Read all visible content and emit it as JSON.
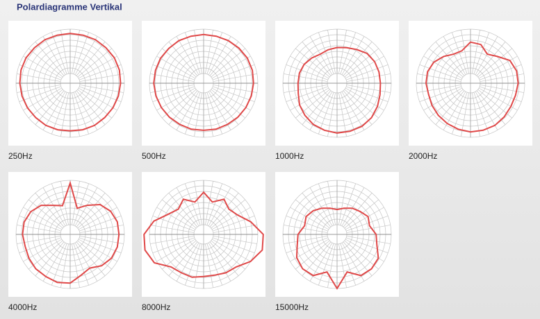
{
  "title": "Polardiagramme Vertikal",
  "chart_data": [
    {
      "type": "polar",
      "title": "250Hz",
      "color": "#e04848",
      "rlim": [
        0,
        1
      ],
      "angles": [
        0,
        15,
        30,
        45,
        60,
        75,
        90,
        105,
        120,
        135,
        150,
        165,
        180,
        195,
        210,
        225,
        240,
        255,
        270,
        285,
        300,
        315,
        330,
        345
      ],
      "values": [
        0.92,
        0.92,
        0.93,
        0.93,
        0.94,
        0.94,
        0.93,
        0.92,
        0.91,
        0.9,
        0.9,
        0.89,
        0.88,
        0.89,
        0.9,
        0.9,
        0.91,
        0.92,
        0.93,
        0.94,
        0.94,
        0.93,
        0.93,
        0.92
      ]
    },
    {
      "type": "polar",
      "title": "500Hz",
      "color": "#e04848",
      "rlim": [
        0,
        1
      ],
      "angles": [
        0,
        15,
        30,
        45,
        60,
        75,
        90,
        105,
        120,
        135,
        150,
        165,
        180,
        195,
        210,
        225,
        240,
        255,
        270,
        285,
        300,
        315,
        330,
        345
      ],
      "values": [
        0.9,
        0.9,
        0.91,
        0.92,
        0.93,
        0.93,
        0.92,
        0.91,
        0.9,
        0.89,
        0.88,
        0.88,
        0.87,
        0.88,
        0.88,
        0.89,
        0.9,
        0.91,
        0.92,
        0.92,
        0.92,
        0.91,
        0.91,
        0.9
      ]
    },
    {
      "type": "polar",
      "title": "1000Hz",
      "color": "#e04848",
      "rlim": [
        0,
        1
      ],
      "angles": [
        0,
        15,
        30,
        45,
        60,
        75,
        90,
        105,
        120,
        135,
        150,
        165,
        180,
        195,
        210,
        225,
        240,
        255,
        270,
        285,
        300,
        315,
        330,
        345
      ],
      "values": [
        0.66,
        0.68,
        0.72,
        0.78,
        0.8,
        0.8,
        0.8,
        0.82,
        0.86,
        0.9,
        0.92,
        0.92,
        0.92,
        0.9,
        0.88,
        0.84,
        0.8,
        0.74,
        0.72,
        0.72,
        0.7,
        0.66,
        0.62,
        0.64
      ]
    },
    {
      "type": "polar",
      "title": "2000Hz",
      "color": "#e04848",
      "rlim": [
        0,
        1
      ],
      "angles": [
        0,
        15,
        30,
        45,
        60,
        75,
        90,
        105,
        120,
        135,
        150,
        165,
        180,
        195,
        210,
        225,
        240,
        255,
        270,
        285,
        300,
        315,
        330,
        345
      ],
      "values": [
        0.76,
        0.74,
        0.62,
        0.7,
        0.84,
        0.88,
        0.88,
        0.86,
        0.86,
        0.88,
        0.9,
        0.9,
        0.9,
        0.88,
        0.86,
        0.84,
        0.82,
        0.8,
        0.82,
        0.82,
        0.78,
        0.7,
        0.62,
        0.62
      ]
    },
    {
      "type": "polar",
      "title": "4000Hz",
      "color": "#e04848",
      "rlim": [
        0,
        1
      ],
      "angles": [
        0,
        15,
        30,
        45,
        60,
        75,
        90,
        105,
        120,
        135,
        150,
        165,
        180,
        195,
        210,
        225,
        240,
        255,
        270,
        285,
        300,
        315,
        330,
        345
      ],
      "values": [
        0.95,
        0.5,
        0.62,
        0.78,
        0.86,
        0.9,
        0.9,
        0.9,
        0.88,
        0.82,
        0.72,
        0.78,
        0.9,
        0.92,
        0.9,
        0.9,
        0.88,
        0.86,
        0.88,
        0.88,
        0.84,
        0.76,
        0.62,
        0.55
      ]
    },
    {
      "type": "polar",
      "title": "8000Hz",
      "color": "#e04848",
      "rlim": [
        0,
        1
      ],
      "angles": [
        0,
        15,
        30,
        45,
        60,
        75,
        90,
        105,
        120,
        135,
        150,
        165,
        180,
        195,
        210,
        225,
        240,
        255,
        270,
        285,
        300,
        315,
        330,
        345
      ],
      "values": [
        0.78,
        0.62,
        0.75,
        0.66,
        0.72,
        0.9,
        1.1,
        1.12,
        1.0,
        0.85,
        0.82,
        0.78,
        0.78,
        0.82,
        0.82,
        0.85,
        1.05,
        1.12,
        1.1,
        0.95,
        0.75,
        0.66,
        0.75,
        0.62
      ]
    },
    {
      "type": "polar",
      "title": "15000Hz",
      "color": "#e04848",
      "rlim": [
        0,
        1
      ],
      "angles": [
        0,
        15,
        30,
        45,
        60,
        75,
        90,
        105,
        120,
        135,
        150,
        165,
        180,
        195,
        210,
        225,
        240,
        255,
        270,
        285,
        300,
        315,
        330,
        345
      ],
      "values": [
        0.46,
        0.5,
        0.56,
        0.6,
        0.66,
        0.62,
        0.72,
        0.76,
        0.88,
        0.9,
        0.88,
        0.72,
        1.0,
        0.72,
        0.88,
        0.9,
        0.86,
        0.76,
        0.72,
        0.62,
        0.66,
        0.62,
        0.56,
        0.5
      ]
    }
  ]
}
